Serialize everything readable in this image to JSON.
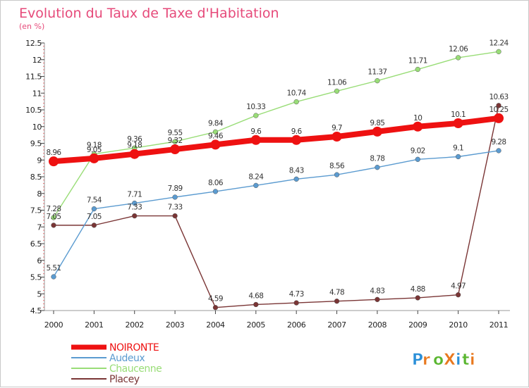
{
  "chart_data": {
    "type": "line",
    "title": "Evolution du Taux de Taxe d'Habitation",
    "subtitle": "(en %)",
    "xlabel": "",
    "ylabel": "",
    "categories": [
      "2000",
      "2001",
      "2002",
      "2003",
      "2004",
      "2005",
      "2006",
      "2007",
      "2008",
      "2009",
      "2010",
      "2011"
    ],
    "ylim": [
      4.5,
      12.5
    ],
    "yticks": [
      "4.5",
      "5",
      "5.5",
      "6",
      "6.5",
      "7",
      "7.5",
      "8",
      "8.5",
      "9",
      "9.5",
      "10",
      "10.5",
      "11",
      "11.5",
      "12",
      "12.5"
    ],
    "grid": false,
    "legend_position": "bottom-left",
    "series": [
      {
        "name": "NOIRONTE",
        "color": "#ee1111",
        "values": [
          8.96,
          9.05,
          9.18,
          9.32,
          9.46,
          9.6,
          9.6,
          9.7,
          9.85,
          10,
          10.1,
          10.25
        ],
        "labels": [
          "8.96",
          "9.05",
          "9.18",
          "9.32",
          "9.46",
          "9.6",
          "9.6",
          "9.7",
          "9.85",
          "10",
          "10.1",
          "10.25"
        ]
      },
      {
        "name": "Audeux",
        "color": "#5b9bd0",
        "values": [
          5.51,
          7.54,
          7.71,
          7.89,
          8.06,
          8.24,
          8.43,
          8.56,
          8.78,
          9.02,
          9.1,
          9.28
        ],
        "labels": [
          "5.51",
          "7.54",
          "7.71",
          "7.89",
          "8.06",
          "8.24",
          "8.43",
          "8.56",
          "8.78",
          "9.02",
          "9.1",
          "9.28"
        ]
      },
      {
        "name": "Chaucenne",
        "color": "#99dd77",
        "values": [
          7.28,
          9.18,
          9.36,
          9.55,
          9.84,
          10.33,
          10.74,
          11.06,
          11.37,
          11.71,
          12.06,
          12.24
        ],
        "labels": [
          "7.28",
          "9.18",
          "9.36",
          "9.55",
          "9.84",
          "10.33",
          "10.74",
          "11.06",
          "11.37",
          "11.71",
          "12.06",
          "12.24"
        ]
      },
      {
        "name": "Placey",
        "color": "#7a3535",
        "values": [
          7.05,
          7.05,
          7.33,
          7.33,
          4.59,
          4.68,
          4.73,
          4.78,
          4.83,
          4.88,
          4.97,
          10.63
        ],
        "labels": [
          "7.05",
          "7.05",
          "7.33",
          "7.33",
          "4.59",
          "4.68",
          "4.73",
          "4.78",
          "4.83",
          "4.88",
          "4.97",
          "10.63"
        ]
      }
    ]
  },
  "logo": {
    "text": "ProXiti",
    "letters": [
      "P",
      "r",
      "o",
      "X",
      "i",
      "t",
      "i"
    ],
    "colors": [
      "#2a8fd8",
      "#e8781e",
      "#59b62f",
      "#e8781e",
      "#2a8fd8",
      "#59b62f",
      "#e8781e"
    ]
  }
}
